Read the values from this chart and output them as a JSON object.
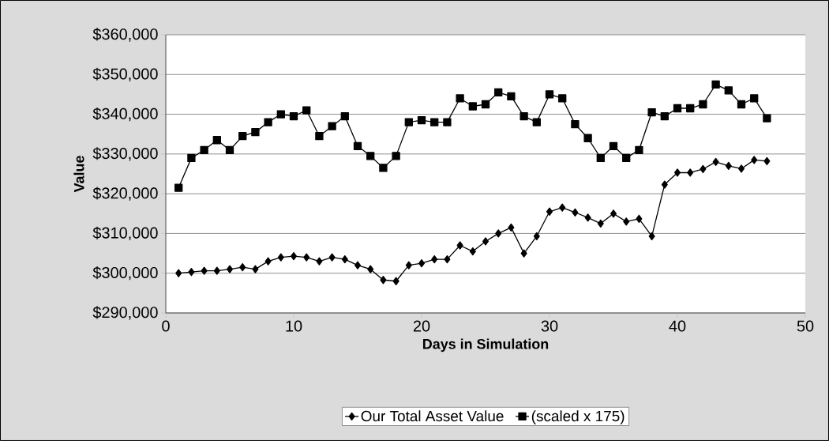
{
  "chart_data": {
    "type": "line",
    "xlabel": "Days in Simulation",
    "ylabel": "Value",
    "x": [
      1,
      2,
      3,
      4,
      5,
      6,
      7,
      8,
      9,
      10,
      11,
      12,
      13,
      14,
      15,
      16,
      17,
      18,
      19,
      20,
      21,
      22,
      23,
      24,
      25,
      26,
      27,
      28,
      29,
      30,
      31,
      32,
      33,
      34,
      35,
      36,
      37,
      38,
      39,
      40,
      41,
      42,
      43,
      44,
      45,
      46,
      47
    ],
    "series": [
      {
        "name": "Our Total Asset Value",
        "color": "#000000",
        "marker": "diamond",
        "values": [
          300000,
          300300,
          300600,
          300600,
          301000,
          301500,
          301000,
          303000,
          304000,
          304300,
          304000,
          303000,
          304000,
          303500,
          302000,
          301000,
          298300,
          298000,
          302000,
          302500,
          303500,
          303500,
          307000,
          305500,
          308000,
          310000,
          311500,
          305000,
          309300,
          315500,
          316500,
          315300,
          314000,
          312500,
          315000,
          313000,
          313700,
          309300,
          322300,
          325300,
          325300,
          326200,
          328000,
          327000,
          326300,
          328500,
          328200
        ]
      },
      {
        "name": "(scaled x 175)",
        "color": "#000000",
        "marker": "square",
        "values": [
          321500,
          329000,
          331000,
          333500,
          331000,
          334500,
          335500,
          338000,
          340000,
          339500,
          341000,
          334500,
          337000,
          339500,
          332000,
          329500,
          326500,
          329500,
          338000,
          338500,
          338000,
          338000,
          344000,
          342000,
          342500,
          345500,
          344500,
          339500,
          338000,
          345000,
          344000,
          337500,
          334000,
          329000,
          332000,
          329000,
          331000,
          340500,
          339500,
          341500,
          341500,
          342500,
          347500,
          346000,
          342500,
          344000,
          339000
        ]
      }
    ],
    "xlim": [
      0,
      50
    ],
    "xticks": [
      0,
      10,
      20,
      30,
      40,
      50
    ],
    "ylim": [
      290000,
      360000
    ],
    "yticks": [
      {
        "value": 290000,
        "label": "$290,000"
      },
      {
        "value": 300000,
        "label": "$300,000"
      },
      {
        "value": 310000,
        "label": "$310,000"
      },
      {
        "value": 320000,
        "label": "$320,000"
      },
      {
        "value": 330000,
        "label": "$330,000"
      },
      {
        "value": 340000,
        "label": "$340,000"
      },
      {
        "value": 350000,
        "label": "$350,000"
      },
      {
        "value": 360000,
        "label": "$360,000"
      }
    ],
    "grid": "y",
    "legend": "bottom",
    "line_style": "solid"
  }
}
